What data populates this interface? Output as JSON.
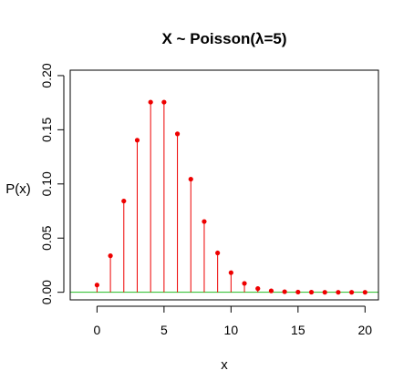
{
  "chart_data": {
    "type": "scatter",
    "title": "X ~ Poisson(λ=5)",
    "xlabel": "x",
    "ylabel": "P(x)",
    "xlim": [
      -2,
      21
    ],
    "ylim": [
      -0.007,
      0.205
    ],
    "x_ticks": [
      "0",
      "5",
      "10",
      "15",
      "20"
    ],
    "y_ticks": [
      "0.00",
      "0.05",
      "0.10",
      "0.15",
      "0.20"
    ],
    "x_tick_values": [
      0,
      5,
      10,
      15,
      20
    ],
    "y_tick_values": [
      0.0,
      0.05,
      0.1,
      0.15,
      0.2
    ],
    "grid": false,
    "reference_line": {
      "y": 0,
      "color": "#22bb22"
    },
    "series": [
      {
        "style": "lollipop",
        "color": "#ee0000",
        "x": [
          0,
          1,
          2,
          3,
          4,
          5,
          6,
          7,
          8,
          9,
          10,
          11,
          12,
          13,
          14,
          15,
          16,
          17,
          18,
          19,
          20
        ],
        "y": [
          0.0067,
          0.0337,
          0.0842,
          0.1404,
          0.1755,
          0.1755,
          0.1462,
          0.1044,
          0.0653,
          0.0363,
          0.0181,
          0.0082,
          0.0034,
          0.0013,
          0.0005,
          0.0002,
          0.0001,
          0.0,
          0.0,
          0.0,
          0.0
        ]
      }
    ]
  }
}
